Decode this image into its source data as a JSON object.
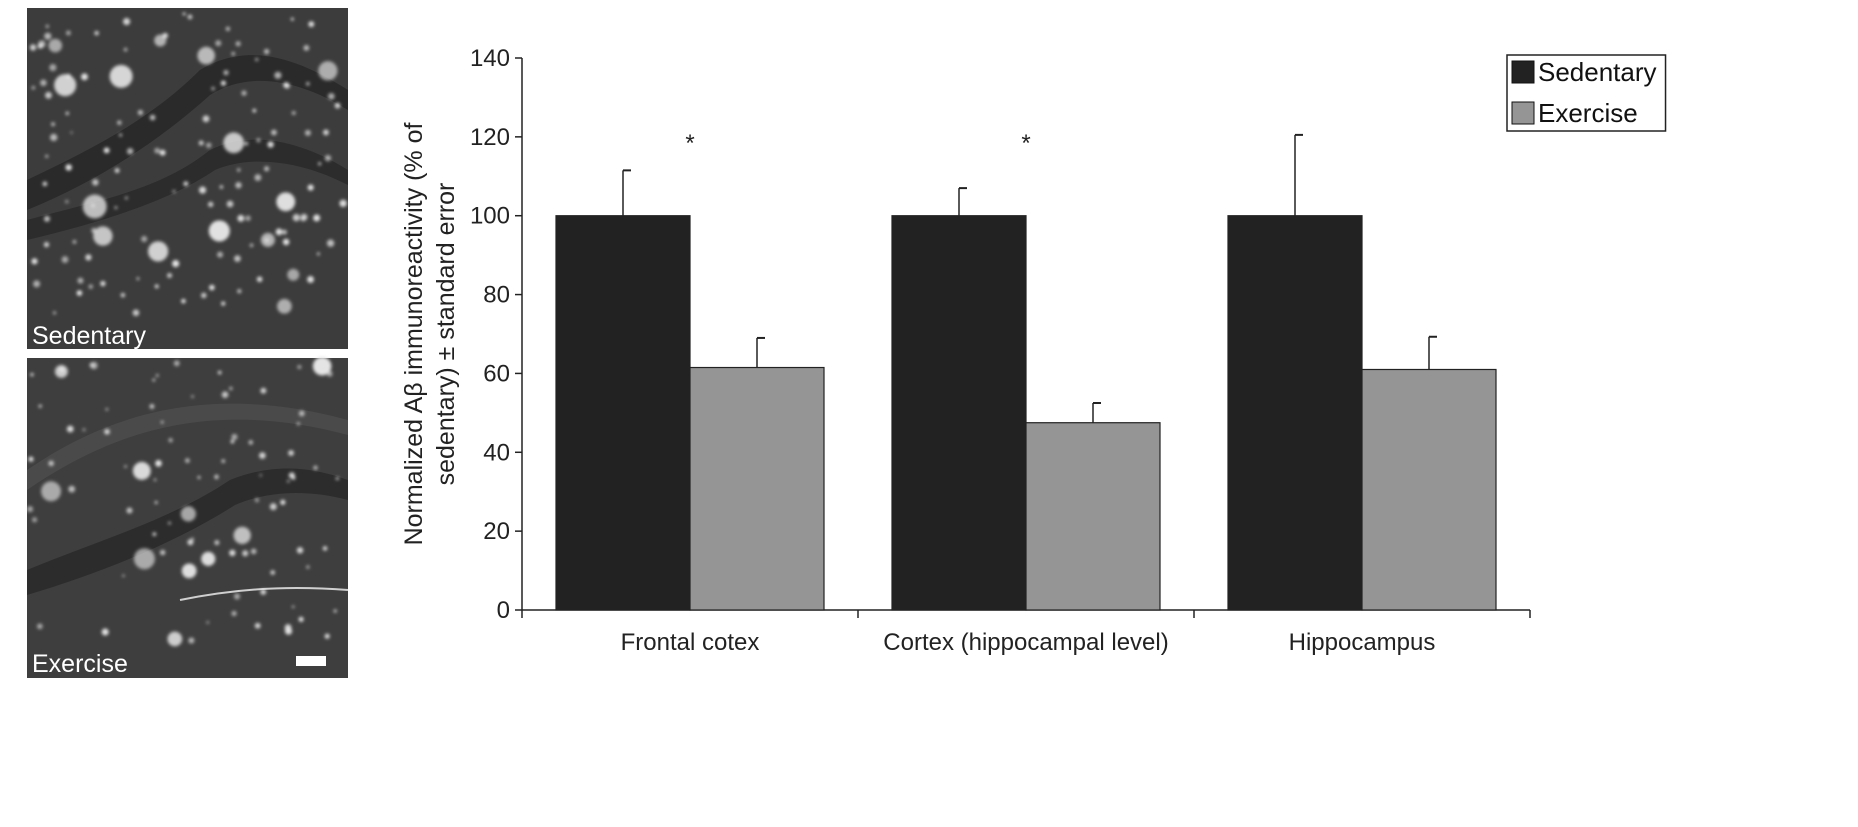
{
  "panels": [
    {
      "label": "Sedentary"
    },
    {
      "label": "Exercise"
    }
  ],
  "chart_data": {
    "type": "bar",
    "title": "",
    "xlabel": "",
    "ylabel_line1": "Normalized  Aβ immunoreactivity (% of",
    "ylabel_line2": "sedentary) ± standard error",
    "ylim": [
      0,
      140
    ],
    "yticks": [
      "0",
      "20",
      "40",
      "60",
      "80",
      "100",
      "120",
      "140"
    ],
    "categories": [
      "Frontal cotex",
      "Cortex (hippocampal level)",
      "Hippocampus"
    ],
    "series": [
      {
        "name": "Sedentary",
        "color": "#222222",
        "values": [
          100,
          100,
          100
        ],
        "error": [
          11.5,
          7,
          20.5
        ]
      },
      {
        "name": "Exercise",
        "color": "#959595",
        "values": [
          61.5,
          47.5,
          61
        ],
        "error": [
          7.5,
          5,
          8.3
        ]
      }
    ],
    "annotations": [
      "*",
      "*",
      ""
    ],
    "legend_position": "top-right",
    "grid": false
  }
}
